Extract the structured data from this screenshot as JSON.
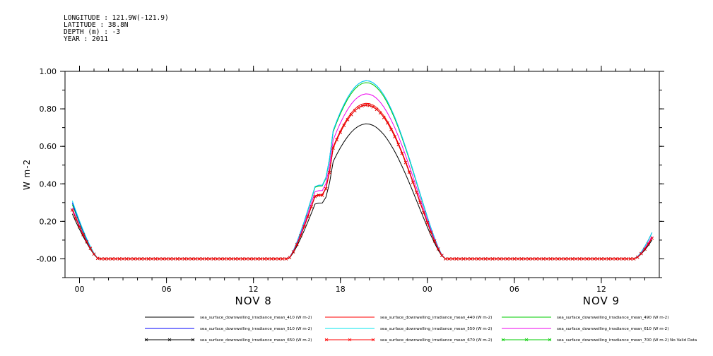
{
  "header": {
    "longitude": "LONGITUDE : 121.9W(-121.9)",
    "latitude": "LATITUDE : 38.8N",
    "depth": "DEPTH (m) : -3",
    "year": "YEAR : 2011"
  },
  "chart_data": {
    "type": "line",
    "ylabel": "W m-2",
    "ylim": [
      -0.1,
      1.0
    ],
    "yticks": [
      "-0.00",
      "0.20",
      "0.40",
      "0.60",
      "0.80",
      "1.00"
    ],
    "yticks_values": [
      0.0,
      0.2,
      0.4,
      0.6,
      0.8,
      1.0
    ],
    "x_unit": "hours since NOV 8 00:00",
    "xlim": [
      -1,
      40
    ],
    "xticks": [
      "00",
      "06",
      "12",
      "18",
      "00",
      "06",
      "12"
    ],
    "xticks_hours": [
      0,
      6,
      12,
      18,
      24,
      30,
      36
    ],
    "date_labels": [
      {
        "text": "NOV  8",
        "hour": 12
      },
      {
        "text": "NOV  9",
        "hour": 36
      }
    ],
    "series": [
      {
        "name": "sea_surface_downwelling_irradiance_mean_410 (W m-2)",
        "color": "#000000",
        "marker": "none",
        "peak": 0.72,
        "start": 0.24,
        "end": 0.1
      },
      {
        "name": "sea_surface_downwelling_irradiance_mean_440 (W m-2)",
        "color": "#ff0000",
        "marker": "none",
        "peak": 0.83,
        "start": 0.26,
        "end": 0.12
      },
      {
        "name": "sea_surface_downwelling_irradiance_mean_490 (W m-2)",
        "color": "#00cc00",
        "marker": "none",
        "peak": 0.94,
        "start": 0.29,
        "end": 0.14
      },
      {
        "name": "sea_surface_downwelling_irradiance_mean_510 (W m-2)",
        "color": "#0000ff",
        "marker": "none",
        "peak": 0.95,
        "start": 0.3,
        "end": 0.14
      },
      {
        "name": "sea_surface_downwelling_irradiance_mean_550 (W m-2)",
        "color": "#00e5ee",
        "marker": "none",
        "peak": 0.95,
        "start": 0.31,
        "end": 0.14
      },
      {
        "name": "sea_surface_downwelling_irradiance_mean_610 (W m-2)",
        "color": "#ee00ee",
        "marker": "none",
        "peak": 0.88,
        "start": 0.27,
        "end": 0.12
      },
      {
        "name": "sea_surface_downwelling_irradiance_mean_650 (W m-2)",
        "color": "#000000",
        "marker": "x",
        "peak": 0.82,
        "start": 0.26,
        "end": 0.11
      },
      {
        "name": "sea_surface_downwelling_irradiance_mean_670 (W m-2)",
        "color": "#ff0000",
        "marker": "x",
        "peak": 0.82,
        "start": 0.26,
        "end": 0.11
      },
      {
        "name": "sea_surface_downwelling_irradiance_mean_700 (W m-2) No Valid Data",
        "color": "#00cc00",
        "marker": "x",
        "peak": null,
        "start": null,
        "end": null
      }
    ],
    "grid": false,
    "legend": "bottom"
  }
}
